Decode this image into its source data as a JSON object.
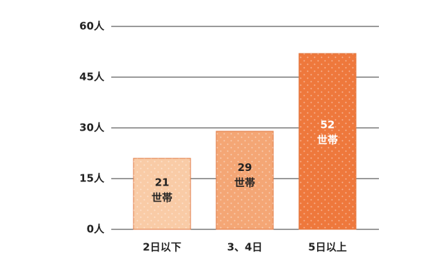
{
  "chart_data": {
    "type": "bar",
    "categories": [
      "2日以下",
      "3、4日",
      "5日以上"
    ],
    "values": [
      21,
      29,
      52
    ],
    "value_labels": [
      [
        "21",
        "世帯"
      ],
      [
        "29",
        "世帯"
      ],
      [
        "52",
        "世帯"
      ]
    ],
    "colors": [
      "#f9cba6",
      "#f4a675",
      "#ee783c"
    ],
    "value_label_colors": [
      "#222222",
      "#222222",
      "#ffffff"
    ],
    "ylim": [
      0,
      60
    ],
    "yticks": [
      {
        "value": 0,
        "label": "0人"
      },
      {
        "value": 15,
        "label": "15人"
      },
      {
        "value": 30,
        "label": "30人"
      },
      {
        "value": 45,
        "label": "45人"
      },
      {
        "value": 60,
        "label": "60人"
      }
    ],
    "grid": true
  }
}
